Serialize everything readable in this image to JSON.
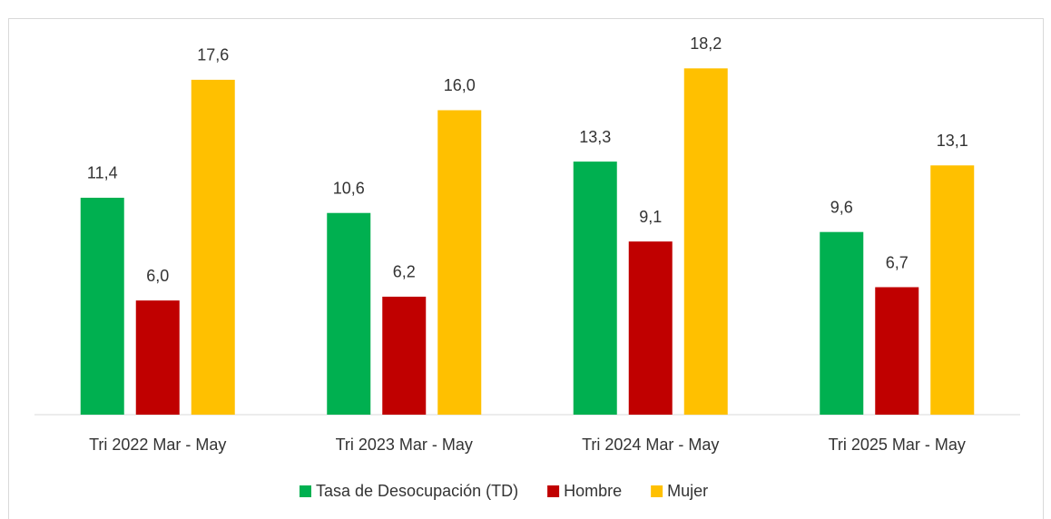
{
  "chart_data": {
    "type": "bar",
    "categories": [
      "Tri 2022 Mar - May",
      "Tri 2023 Mar - May",
      "Tri 2024 Mar - May",
      "Tri 2025 Mar - May"
    ],
    "series": [
      {
        "name": "Tasa de Desocupación (TD)",
        "color": "#00b050",
        "values": [
          11.4,
          10.6,
          13.3,
          9.6
        ],
        "value_labels": [
          "11,4",
          "10,6",
          "13,3",
          "9,6"
        ]
      },
      {
        "name": "Hombre",
        "color": "#c00000",
        "values": [
          6.0,
          6.2,
          9.1,
          6.7
        ],
        "value_labels": [
          "6,0",
          "6,2",
          "9,1",
          "6,7"
        ]
      },
      {
        "name": "Mujer",
        "color": "#ffc000",
        "values": [
          17.6,
          16.0,
          18.2,
          13.1
        ],
        "value_labels": [
          "17,6",
          "16,0",
          "18,2",
          "13,1"
        ]
      }
    ],
    "ylim": [
      0,
      20
    ],
    "legend": "bottom"
  }
}
